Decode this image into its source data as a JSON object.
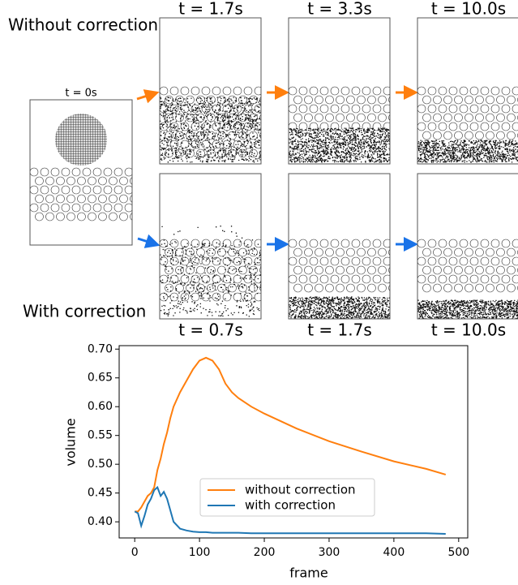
{
  "panels": {
    "row_labels": [
      "Without correction",
      "With correction"
    ],
    "initial_label": "t = 0s",
    "top_times": [
      "t = 1.7s",
      "t = 3.3s",
      "t = 10.0s"
    ],
    "bottom_times": [
      "t = 0.7s",
      "t = 1.7s",
      "t = 10.0s"
    ]
  },
  "chart_data": {
    "type": "line",
    "xlabel": "frame",
    "ylabel": "volume",
    "x": [
      0,
      5,
      10,
      15,
      20,
      25,
      30,
      35,
      40,
      45,
      50,
      55,
      60,
      70,
      80,
      90,
      100,
      110,
      120,
      130,
      140,
      150,
      160,
      180,
      200,
      250,
      300,
      350,
      400,
      450,
      480
    ],
    "series": [
      {
        "name": "without correction",
        "color": "#ff7f0e",
        "values": [
          0.418,
          0.418,
          0.425,
          0.435,
          0.445,
          0.45,
          0.46,
          0.49,
          0.51,
          0.535,
          0.555,
          0.58,
          0.6,
          0.625,
          0.645,
          0.665,
          0.68,
          0.685,
          0.68,
          0.665,
          0.64,
          0.625,
          0.615,
          0.6,
          0.588,
          0.562,
          0.54,
          0.522,
          0.505,
          0.492,
          0.482
        ]
      },
      {
        "name": "with correction",
        "color": "#1f77b4",
        "values": [
          0.418,
          0.415,
          0.393,
          0.41,
          0.43,
          0.44,
          0.455,
          0.46,
          0.445,
          0.452,
          0.44,
          0.42,
          0.4,
          0.388,
          0.385,
          0.383,
          0.382,
          0.382,
          0.381,
          0.381,
          0.381,
          0.381,
          0.381,
          0.38,
          0.38,
          0.38,
          0.38,
          0.38,
          0.38,
          0.38,
          0.379
        ]
      }
    ],
    "xlim": [
      -24,
      514
    ],
    "ylim": [
      0.372,
      0.706
    ],
    "xticks": [
      0,
      100,
      200,
      300,
      400,
      500
    ],
    "yticks": [
      {
        "value": 0.4,
        "label": "0.40"
      },
      {
        "value": 0.45,
        "label": "0.45"
      },
      {
        "value": 0.5,
        "label": "0.50"
      },
      {
        "value": 0.55,
        "label": "0.55"
      },
      {
        "value": 0.6,
        "label": "0.60"
      },
      {
        "value": 0.65,
        "label": "0.65"
      },
      {
        "value": 0.7,
        "label": "0.70"
      }
    ],
    "legend": "lower center"
  }
}
